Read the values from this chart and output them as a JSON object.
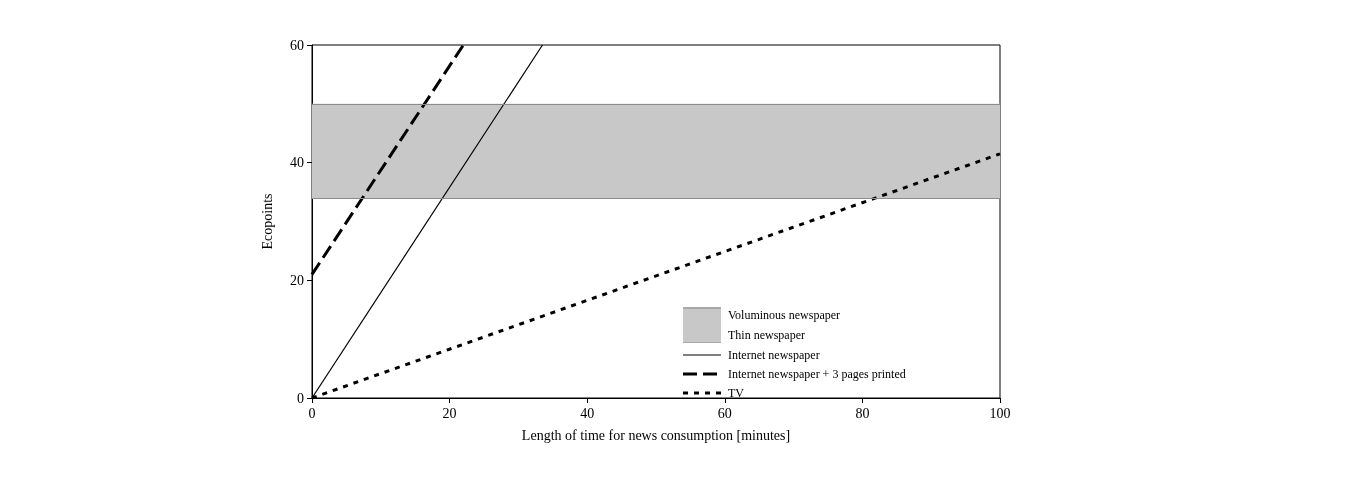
{
  "chart_data": {
    "type": "line",
    "xlabel": "Length of time for news consumption [minutes]",
    "ylabel": "Ecopoints",
    "xlim": [
      0,
      100
    ],
    "xticks": [
      0,
      20,
      40,
      60,
      80,
      100
    ],
    "ylim": [
      0,
      60
    ],
    "yticks": [
      0,
      20,
      40,
      60
    ],
    "grid": false,
    "legend": "bottom right",
    "marker": "none",
    "bands": [
      {
        "axis": "y",
        "from": 34,
        "to": 50,
        "color": "#c8c8c8"
      }
    ],
    "ref_lines": [
      {
        "axis": "y",
        "value": 50,
        "label": "Voluminous newspaper",
        "color": "#8c8c8c"
      },
      {
        "axis": "y",
        "value": 34,
        "label": "Thin newspaper",
        "color": "#8c8c8c"
      }
    ],
    "series": [
      {
        "name": "Internet newspaper",
        "color": "#000000",
        "x": [
          0,
          33.5
        ],
        "values": [
          0,
          60
        ],
        "line_style": "solid"
      },
      {
        "name": "Internet newspaper + 3 pages printed",
        "color": "#000000",
        "x": [
          0,
          22
        ],
        "values": [
          21,
          60
        ],
        "line_style": "dashed"
      },
      {
        "name": "TV",
        "color": "#000000",
        "x": [
          0,
          100
        ],
        "values": [
          0,
          41.5
        ],
        "line_style": "dotted"
      }
    ]
  }
}
